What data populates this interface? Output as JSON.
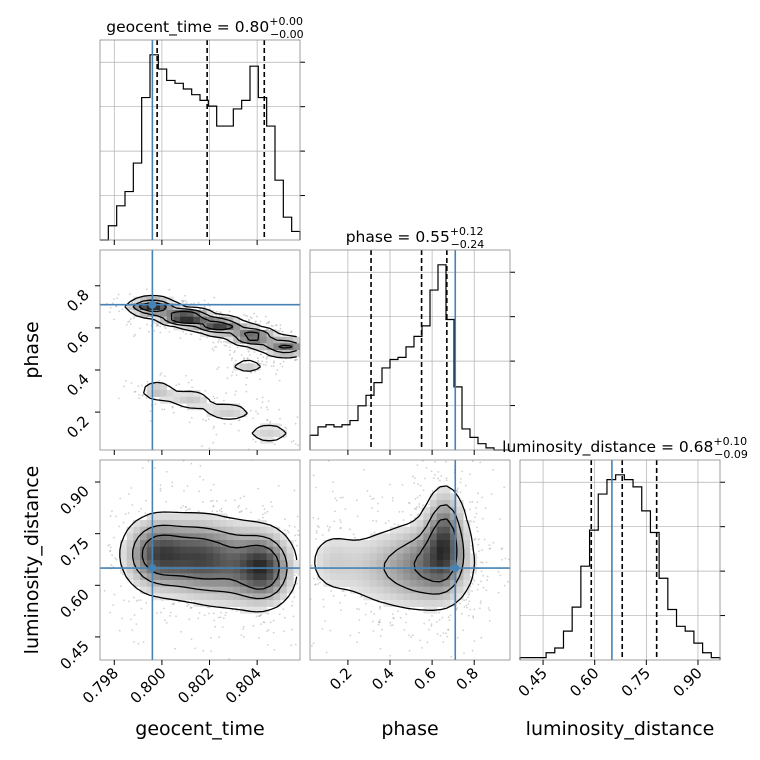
{
  "chart_data": {
    "type": "corner",
    "parameters": [
      "geocent_time",
      "phase",
      "luminosity_distance"
    ],
    "axis_labels": {
      "x": [
        "geocent_time",
        "phase",
        "luminosity_distance"
      ],
      "y": [
        "phase",
        "luminosity_distance"
      ]
    },
    "titles": [
      {
        "name": "geocent_time",
        "value": "0.80",
        "plus": "+0.00",
        "minus": "−0.00"
      },
      {
        "name": "phase",
        "value": "0.55",
        "plus": "+0.12",
        "minus": "−0.24"
      },
      {
        "name": "luminosity_distance",
        "value": "0.68",
        "plus": "+0.10",
        "minus": "−0.09"
      }
    ],
    "ranges": {
      "geocent_time": [
        0.7974,
        0.8058
      ],
      "phase": [
        0.02,
        0.97
      ],
      "luminosity_distance": [
        0.383,
        0.964
      ]
    },
    "ticks": {
      "geocent_time": [
        0.798,
        0.8,
        0.802,
        0.804
      ],
      "phase_x": [
        0.2,
        0.4,
        0.6,
        0.8
      ],
      "phase_y": [
        0.2,
        0.4,
        0.6,
        0.8
      ],
      "luminosity_distance": [
        0.45,
        0.6,
        0.75,
        0.9
      ]
    },
    "tick_labels": {
      "geocent_time": [
        "0.798",
        "0.800",
        "0.802",
        "0.804"
      ],
      "phase_x": [
        "0.2",
        "0.4",
        "0.6",
        "0.8"
      ],
      "phase_y": [
        "0.2",
        "0.4",
        "0.6",
        "0.8"
      ],
      "luminosity_distance": [
        "0.45",
        "0.60",
        "0.75",
        "0.90"
      ]
    },
    "truths": {
      "geocent_time": 0.7996,
      "phase": 0.71,
      "luminosity_distance": 0.65
    },
    "quantiles": {
      "geocent_time": [
        0.7998,
        0.8019,
        0.8043
      ],
      "phase": [
        0.31,
        0.55,
        0.67
      ],
      "luminosity_distance": [
        0.59,
        0.68,
        0.78
      ]
    },
    "histograms": {
      "geocent_time": [
        0.0,
        0.05,
        0.12,
        0.17,
        0.27,
        0.5,
        0.65,
        0.6,
        0.56,
        0.55,
        0.53,
        0.51,
        0.49,
        0.47,
        0.4,
        0.4,
        0.46,
        0.49,
        0.61,
        0.5,
        0.4,
        0.21,
        0.08,
        0.03
      ],
      "phase": [
        0.07,
        0.11,
        0.12,
        0.11,
        0.12,
        0.14,
        0.21,
        0.26,
        0.32,
        0.39,
        0.43,
        0.44,
        0.49,
        0.54,
        0.59,
        0.76,
        0.88,
        0.62,
        0.3,
        0.1,
        0.06,
        0.03,
        0.01,
        0.0,
        0.0
      ],
      "luminosity_distance": [
        0.01,
        0.01,
        0.01,
        0.03,
        0.05,
        0.12,
        0.22,
        0.39,
        0.54,
        0.69,
        0.75,
        0.77,
        0.75,
        0.72,
        0.62,
        0.53,
        0.34,
        0.21,
        0.14,
        0.12,
        0.07,
        0.03,
        0.01
      ]
    },
    "blobs": {
      "phase_vs_geocent_time": [
        {
          "x": 0.7996,
          "y": 0.7,
          "sx": 0.00055,
          "sy": 0.022,
          "w": 0.9
        },
        {
          "x": 0.801,
          "y": 0.65,
          "sx": 0.0006,
          "sy": 0.022,
          "w": 1.0
        },
        {
          "x": 0.8024,
          "y": 0.61,
          "sx": 0.0006,
          "sy": 0.022,
          "w": 0.8
        },
        {
          "x": 0.8038,
          "y": 0.56,
          "sx": 0.00055,
          "sy": 0.025,
          "w": 0.7
        },
        {
          "x": 0.8052,
          "y": 0.51,
          "sx": 0.0006,
          "sy": 0.025,
          "w": 0.6
        },
        {
          "x": 0.7998,
          "y": 0.3,
          "sx": 0.00045,
          "sy": 0.03,
          "w": 0.25
        },
        {
          "x": 0.8012,
          "y": 0.26,
          "sx": 0.0006,
          "sy": 0.03,
          "w": 0.22
        },
        {
          "x": 0.8028,
          "y": 0.2,
          "sx": 0.0007,
          "sy": 0.03,
          "w": 0.2
        },
        {
          "x": 0.8045,
          "y": 0.1,
          "sx": 0.0007,
          "sy": 0.035,
          "w": 0.18
        },
        {
          "x": 0.8036,
          "y": 0.42,
          "sx": 0.00045,
          "sy": 0.022,
          "w": 0.22
        }
      ],
      "luminosity_distance_vs_geocent_time": [
        {
          "x": 0.7998,
          "y": 0.69,
          "sx": 0.0008,
          "sy": 0.06,
          "w": 0.95
        },
        {
          "x": 0.8015,
          "y": 0.68,
          "sx": 0.0009,
          "sy": 0.065,
          "w": 0.85
        },
        {
          "x": 0.8043,
          "y": 0.65,
          "sx": 0.0007,
          "sy": 0.06,
          "w": 1.0
        },
        {
          "x": 0.803,
          "y": 0.66,
          "sx": 0.0009,
          "sy": 0.07,
          "w": 0.55
        }
      ],
      "luminosity_distance_vs_phase": [
        {
          "x": 0.66,
          "y": 0.74,
          "sx": 0.055,
          "sy": 0.08,
          "w": 1.0
        },
        {
          "x": 0.6,
          "y": 0.66,
          "sx": 0.11,
          "sy": 0.07,
          "w": 0.75
        },
        {
          "x": 0.4,
          "y": 0.65,
          "sx": 0.15,
          "sy": 0.07,
          "w": 0.45
        },
        {
          "x": 0.12,
          "y": 0.67,
          "sx": 0.08,
          "sy": 0.06,
          "w": 0.25
        }
      ]
    },
    "colors": {
      "truth": "#4682b4",
      "hist": "#000000",
      "grid": "#b0b0b0",
      "points": "#9a9a9a"
    }
  }
}
